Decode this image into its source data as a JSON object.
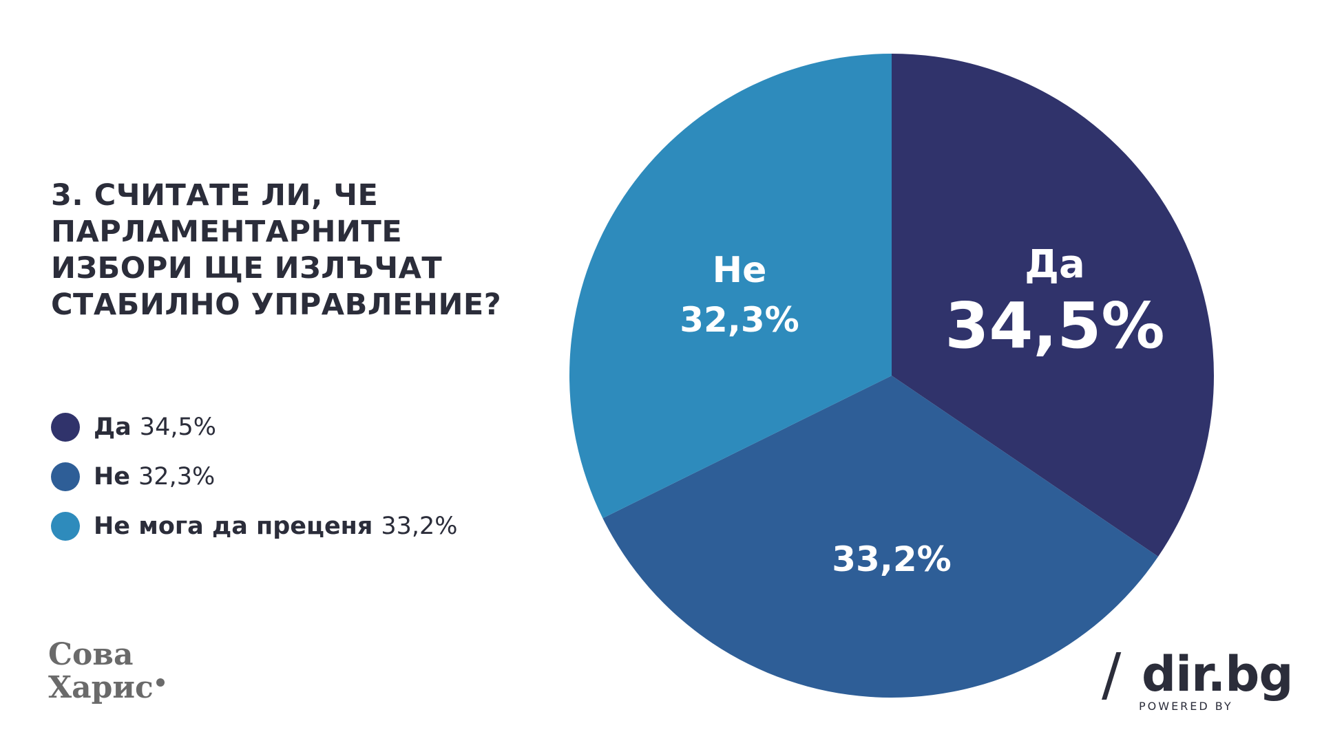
{
  "title": "3. СЧИТАТЕ ЛИ, ЧЕ ПАРЛАМЕНТАРНИТЕ ИЗБОРИ ЩЕ ИЗЛЪЧАТ СТАБИЛНО УПРАВЛЕНИЕ?",
  "legend": [
    {
      "label": "Да",
      "value": "34,5%",
      "color": "#30336b"
    },
    {
      "label": "Не",
      "value": "32,3%",
      "color": "#2e5e97"
    },
    {
      "label": "Не мога да преценя",
      "value": "33,2%",
      "color": "#2e8bbc"
    }
  ],
  "pie_labels": {
    "da": {
      "name": "Да",
      "value": "34,5%"
    },
    "ne": {
      "name": "Не",
      "value": "32,3%"
    },
    "ne_moga": {
      "value": "33,2%"
    }
  },
  "logos": {
    "sova_line1": "Сова",
    "sova_line2": "Харис",
    "dir_slash": "/",
    "dir_brand": "dir.bg",
    "dir_powered": "POWERED BY"
  },
  "chart_data": {
    "type": "pie",
    "title": "3. СЧИТАТЕ ЛИ, ЧЕ ПАРЛАМЕНТАРНИТЕ ИЗБОРИ ЩЕ ИЗЛЪЧАТ СТАБИЛНО УПРАВЛЕНИЕ?",
    "categories": [
      "Да",
      "Не мога да преценя",
      "Не"
    ],
    "values": [
      34.5,
      33.2,
      32.3
    ],
    "colors": [
      "#30336b",
      "#2e5e97",
      "#2e8bbc"
    ],
    "legend_position": "left"
  }
}
